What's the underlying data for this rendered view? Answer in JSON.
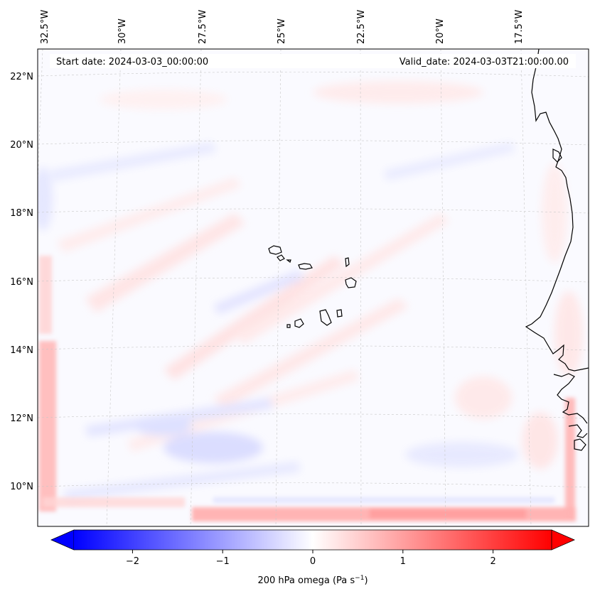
{
  "map": {
    "projection": "Lambert conformal (regional)",
    "start_label": "Start date: 2024-03-03_00:00:00",
    "valid_label": "Valid_date: 2024-03-03T21:00:00.00",
    "lon_labels": [
      "32.5°W",
      "30°W",
      "27.5°W",
      "25°W",
      "22.5°W",
      "20°W",
      "17.5°W"
    ],
    "lat_labels": [
      "22°N",
      "20°N",
      "18°N",
      "16°N",
      "14°N",
      "12°N",
      "10°N"
    ],
    "features": {
      "islands": "Cape Verde islands",
      "coast": "West African coastline (Mauritania, Senegal, Guinea-Bissau)"
    }
  },
  "colorbar": {
    "label": "200 hPa omega (Pa s",
    "label_exponent": "−1",
    "label_close": ")",
    "ticks": [
      "−2",
      "−1",
      "0",
      "1",
      "2"
    ],
    "vmin": -2.65,
    "vmax": 2.65,
    "colormap": "bwr",
    "extend": "both",
    "colors": {
      "low": "#0000ff",
      "mid": "#ffffff",
      "high": "#ff0000"
    }
  }
}
